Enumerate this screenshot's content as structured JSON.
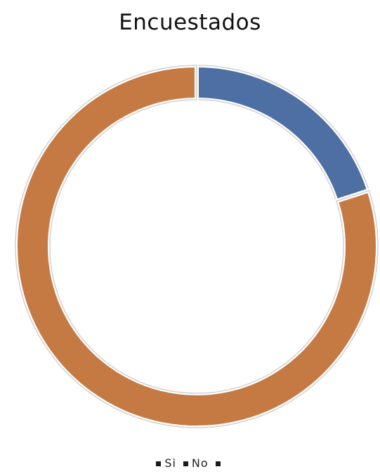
{
  "chart_data": {
    "type": "pie",
    "variant": "donut",
    "title": "Encuestados",
    "categories": [
      "Si",
      "No",
      ""
    ],
    "values": [
      20,
      80,
      0
    ],
    "colors": [
      "#4E6FA3",
      "#C57A43",
      "#8B8B8B"
    ],
    "legend_position": "bottom",
    "data_labels": false
  }
}
